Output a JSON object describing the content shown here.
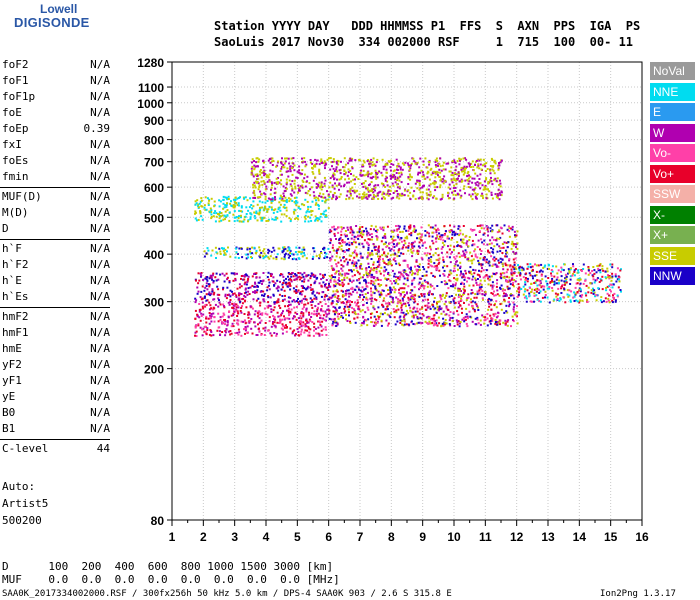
{
  "logo": {
    "top": "Lowell",
    "bottom": "DIGISONDE"
  },
  "header": {
    "line1": "Station YYYY DAY   DDD HHMMSS P1  FFS  S  AXN  PPS  IGA  PS",
    "line2": "SaoLuis 2017 Nov30  334 002000 RSF     1  715  100  00- 11"
  },
  "params": [
    {
      "name": "foF2",
      "value": "N/A"
    },
    {
      "name": "foF1",
      "value": "N/A"
    },
    {
      "name": "foF1p",
      "value": "N/A"
    },
    {
      "name": "foE",
      "value": "N/A"
    },
    {
      "name": "foEp",
      "value": "0.39"
    },
    {
      "name": "fxI",
      "value": "N/A"
    },
    {
      "name": "foEs",
      "value": "N/A"
    },
    {
      "name": "fmin",
      "value": "N/A"
    },
    {
      "name": "MUF(D)",
      "value": "N/A"
    },
    {
      "name": "M(D)",
      "value": "N/A"
    },
    {
      "name": "D",
      "value": "N/A"
    },
    {
      "name": "h`F",
      "value": "N/A"
    },
    {
      "name": "h`F2",
      "value": "N/A"
    },
    {
      "name": "h`E",
      "value": "N/A"
    },
    {
      "name": "h`Es",
      "value": "N/A"
    },
    {
      "name": "hmF2",
      "value": "N/A"
    },
    {
      "name": "hmF1",
      "value": "N/A"
    },
    {
      "name": "hmE",
      "value": "N/A"
    },
    {
      "name": "yF2",
      "value": "N/A"
    },
    {
      "name": "yF1",
      "value": "N/A"
    },
    {
      "name": "yE",
      "value": "N/A"
    },
    {
      "name": "B0",
      "value": "N/A"
    },
    {
      "name": "B1",
      "value": "N/A"
    },
    {
      "name": "C-level",
      "value": "44"
    }
  ],
  "auto": {
    "label": "Auto:",
    "artist": "Artist5",
    "version": "500200"
  },
  "legend": [
    {
      "label": "NoVal",
      "color": "#9a9a9a"
    },
    {
      "label": "NNE",
      "color": "#00dcf0"
    },
    {
      "label": "E",
      "color": "#2a9af0"
    },
    {
      "label": "W",
      "color": "#b000b0"
    },
    {
      "label": "Vo-",
      "color": "#ff40a8"
    },
    {
      "label": "Vo+",
      "color": "#e8002a"
    },
    {
      "label": "SSW",
      "color": "#f4b0a8"
    },
    {
      "label": "X-",
      "color": "#008000"
    },
    {
      "label": "X+",
      "color": "#78b050"
    },
    {
      "label": "SSE",
      "color": "#c8cc00"
    },
    {
      "label": "NNW",
      "color": "#1a00c8"
    }
  ],
  "footer": {
    "d_line": "D      100  200  400  600  800 1000 1500 3000 [km]",
    "muf_line": "MUF    0.0  0.0  0.0  0.0  0.0  0.0  0.0  0.0 [MHz]",
    "bottom_left": "SAA0K_2017334002000.RSF / 300fx256h 50 kHz 5.0 km / DPS-4 SAA0K 903 / 2.6 S 315.8 E",
    "bottom_right": "Ion2Png 1.3.17"
  },
  "chart_data": {
    "type": "scatter",
    "title": "",
    "xlabel": "",
    "ylabel": "",
    "xlim": [
      1,
      16
    ],
    "ylim": [
      80,
      1280
    ],
    "yscale": "log",
    "grid": true,
    "x_ticks": [
      "1",
      "2",
      "3",
      "4",
      "5",
      "6",
      "7",
      "8",
      "9",
      "10",
      "11",
      "12",
      "13",
      "14",
      "15",
      "16"
    ],
    "y_ticks": [
      "80",
      "200",
      "300",
      "400",
      "500",
      "600",
      "700",
      "800",
      "900",
      "1000",
      "1100",
      "1280"
    ],
    "regions": [
      {
        "name": "E/F trace low",
        "x": [
          1.7,
          6.0
        ],
        "y": [
          245,
          300
        ],
        "colors": [
          "#e8002a",
          "#ff40a8",
          "#b000b0"
        ]
      },
      {
        "name": "F trace 320",
        "x": [
          1.7,
          6.0
        ],
        "y": [
          300,
          360
        ],
        "colors": [
          "#b000b0",
          "#1a00c8",
          "#e8002a"
        ]
      },
      {
        "name": "F trace 400",
        "x": [
          2.0,
          6.0
        ],
        "y": [
          390,
          420
        ],
        "colors": [
          "#c8cc00",
          "#1a00c8",
          "#00dcf0"
        ]
      },
      {
        "name": "spread F mid",
        "x": [
          6.0,
          12.0
        ],
        "y": [
          260,
          480
        ],
        "colors": [
          "#e8002a",
          "#ff40a8",
          "#b000b0",
          "#1a00c8",
          "#c8cc00"
        ]
      },
      {
        "name": "high band",
        "x": [
          12.0,
          15.3
        ],
        "y": [
          300,
          380
        ],
        "colors": [
          "#e8002a",
          "#ff40a8",
          "#c8cc00",
          "#1a00c8",
          "#00dcf0"
        ]
      },
      {
        "name": "multi hop 500",
        "x": [
          1.7,
          6.0
        ],
        "y": [
          490,
          570
        ],
        "colors": [
          "#c8cc00",
          "#00dcf0"
        ]
      },
      {
        "name": "multi hop 600",
        "x": [
          3.5,
          11.5
        ],
        "y": [
          560,
          720
        ],
        "colors": [
          "#c8cc00",
          "#b000b0"
        ]
      }
    ]
  }
}
